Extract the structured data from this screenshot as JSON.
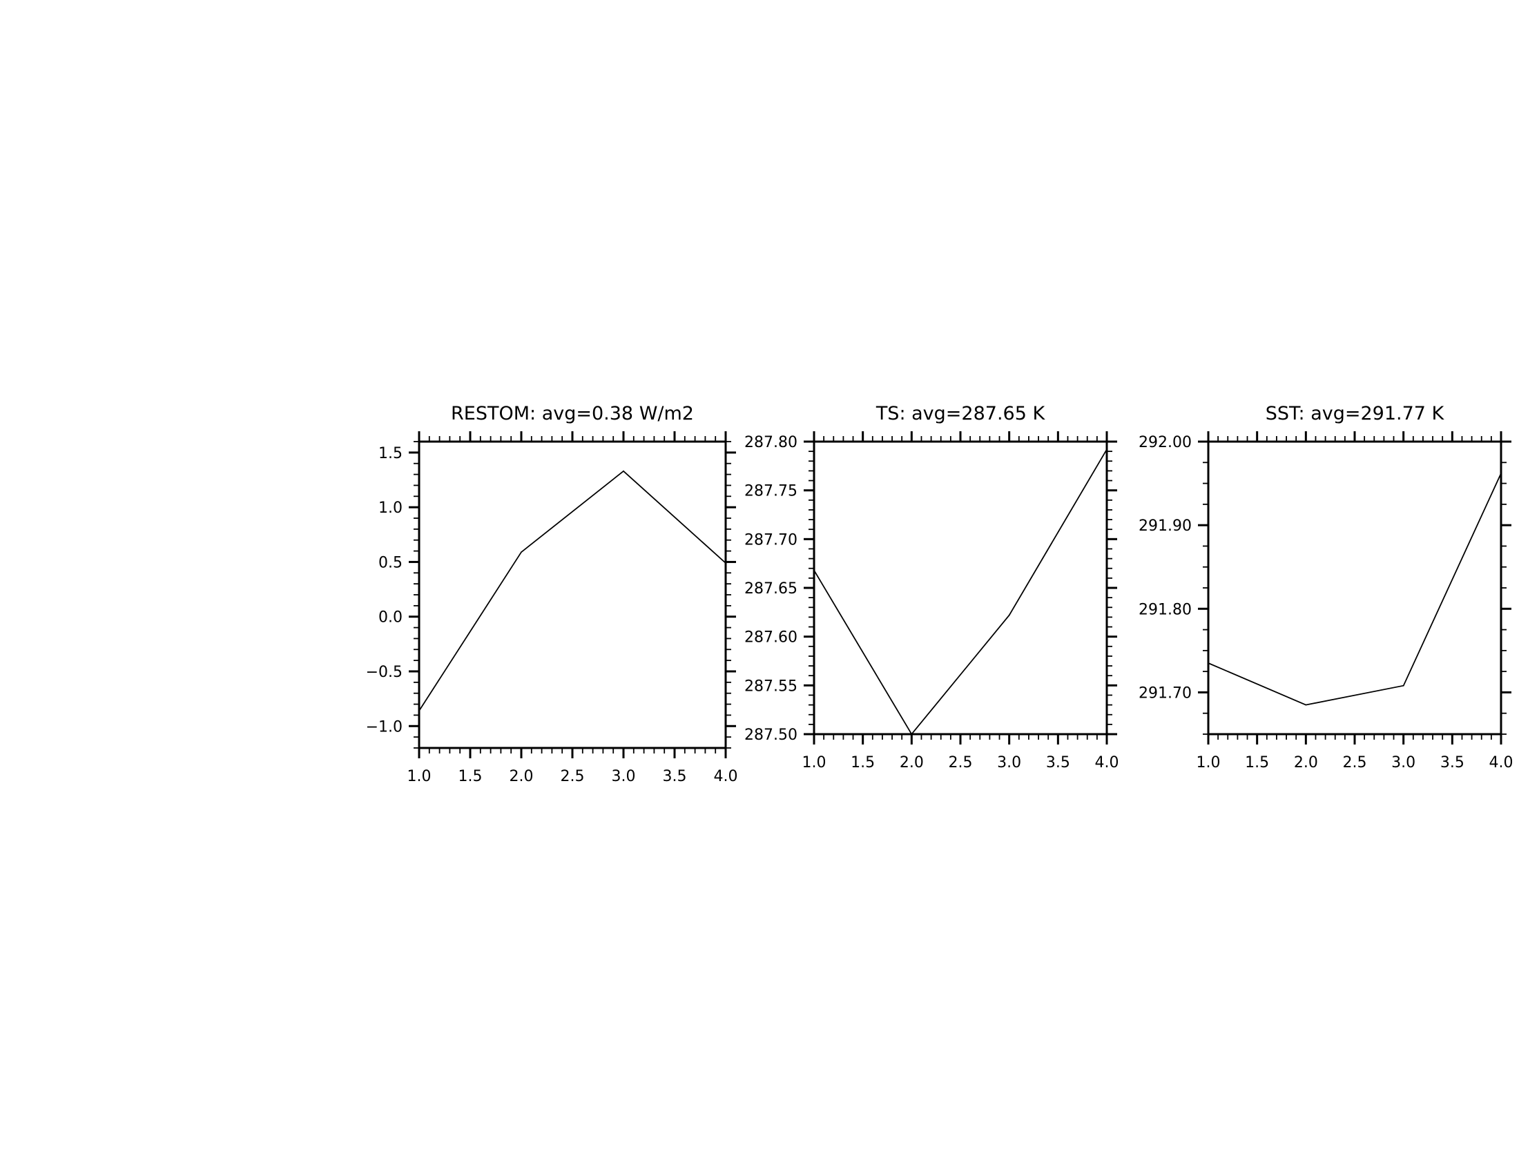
{
  "chart_data": [
    {
      "type": "line",
      "title": "RESTOM: avg=0.38 W/m2",
      "xlabel": "",
      "ylabel": "",
      "x": [
        1,
        2,
        3,
        4
      ],
      "y": [
        -0.86,
        0.59,
        1.33,
        0.49
      ],
      "xlim": [
        1.0,
        4.0
      ],
      "ylim": [
        -1.2,
        1.6
      ],
      "xticks": [
        "1.0",
        "1.5",
        "2.0",
        "2.5",
        "3.0",
        "3.5",
        "4.0"
      ],
      "yticks": [
        "−1.0",
        "−0.5",
        "0.0",
        "0.5",
        "1.0",
        "1.5"
      ],
      "grid": false
    },
    {
      "type": "line",
      "title": "TS: avg=287.65 K",
      "xlabel": "",
      "ylabel": "",
      "x": [
        1,
        2,
        3,
        4
      ],
      "y": [
        287.668,
        287.5,
        287.622,
        287.792
      ],
      "xlim": [
        1.0,
        4.0
      ],
      "ylim": [
        287.5,
        287.8
      ],
      "xticks": [
        "1.0",
        "1.5",
        "2.0",
        "2.5",
        "3.0",
        "3.5",
        "4.0"
      ],
      "yticks": [
        "287.50",
        "287.55",
        "287.60",
        "287.65",
        "287.70",
        "287.75",
        "287.80"
      ],
      "grid": false
    },
    {
      "type": "line",
      "title": "SST: avg=291.77 K",
      "xlabel": "",
      "ylabel": "",
      "x": [
        1,
        2,
        3,
        4
      ],
      "y": [
        291.735,
        291.685,
        291.708,
        291.962
      ],
      "xlim": [
        1.0,
        4.0
      ],
      "ylim": [
        291.65,
        292.0
      ],
      "xticks": [
        "1.0",
        "1.5",
        "2.0",
        "2.5",
        "3.0",
        "3.5",
        "4.0"
      ],
      "yticks": [
        "291.70",
        "291.80",
        "291.90",
        "292.00"
      ],
      "grid": false
    }
  ]
}
